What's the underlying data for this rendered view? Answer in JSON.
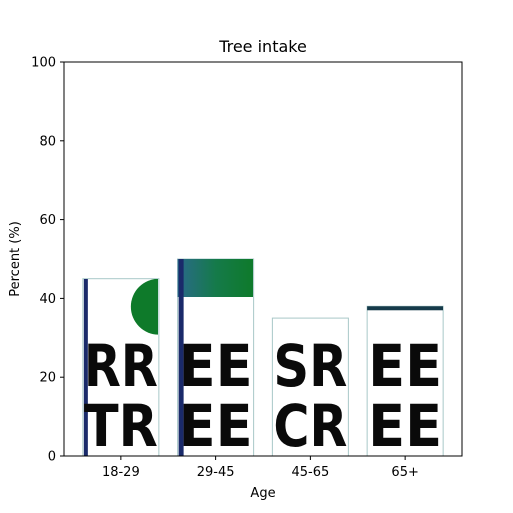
{
  "chart_data": {
    "type": "bar",
    "title": "Tree intake",
    "xlabel": "Age",
    "ylabel": "Percent (%)",
    "categories": [
      "18-29",
      "29-45",
      "45-65",
      "65+"
    ],
    "values": [
      45,
      50,
      35,
      38
    ],
    "ylim": [
      0,
      100
    ],
    "yticks": [
      0,
      20,
      40,
      60,
      80,
      100
    ],
    "grid": false,
    "legend": "none",
    "colors": {
      "frame": "#000000",
      "bar_fill": "#ffffff",
      "bar_edge": "#a8c8c8",
      "accent_green": "#0e7a2a",
      "accent_dark": "#163a4a"
    }
  },
  "bar_text": {
    "b0": [
      "RR",
      "TR"
    ],
    "b1": [
      "EE",
      "EE"
    ],
    "b2": [
      "SR",
      "CR"
    ],
    "b3": [
      "EE",
      "EE"
    ]
  }
}
